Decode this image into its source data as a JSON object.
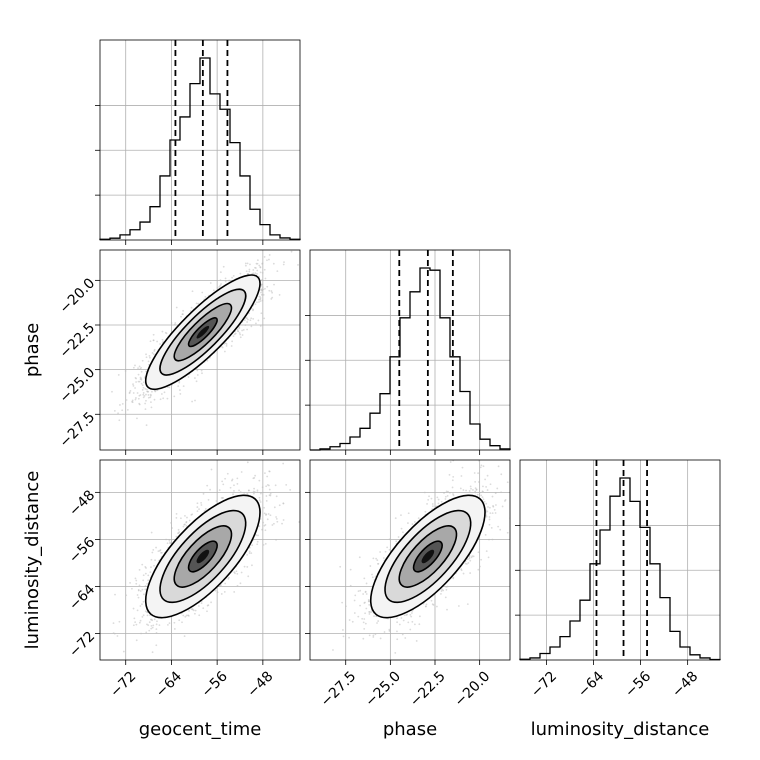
{
  "chart_data": {
    "type": "corner",
    "parameters": [
      "geocent_time",
      "phase",
      "luminosity_distance"
    ],
    "axis_labels": {
      "geocent_time": "geocent_time",
      "phase": "phase",
      "luminosity_distance": "luminosity_distance"
    },
    "ranges": {
      "geocent_time": [
        -76.5,
        -41.5
      ],
      "phase": [
        -29.5,
        -18.3
      ],
      "luminosity_distance": [
        -76.5,
        -42.5
      ]
    },
    "ticks": {
      "geocent_time": [
        -72,
        -64,
        -56,
        -48
      ],
      "phase": [
        -27.5,
        -25.0,
        -22.5,
        -20.0
      ],
      "luminosity_distance": [
        -72,
        -64,
        -56,
        -48
      ]
    },
    "tick_labels": {
      "geocent_time": [
        "−72",
        "−64",
        "−56",
        "−48"
      ],
      "phase": [
        "−27.5",
        "−25.0",
        "−22.5",
        "−20.0"
      ],
      "luminosity_distance": [
        "−72",
        "−64",
        "−56",
        "−48"
      ]
    },
    "histograms": {
      "geocent_time": {
        "edges": [
          -76.5,
          -74.75,
          -73.0,
          -71.25,
          -69.5,
          -67.75,
          -66.0,
          -64.25,
          -62.5,
          -60.75,
          -59.0,
          -57.25,
          -55.5,
          -53.75,
          -52.0,
          -50.25,
          -48.5,
          -46.75,
          -45.0,
          -43.25,
          -41.5
        ],
        "counts": [
          0.3,
          0.7,
          2,
          4,
          7,
          13,
          25,
          39,
          48,
          61,
          71,
          57,
          51,
          38,
          25,
          12,
          6,
          2,
          0.8,
          0.3
        ],
        "quantiles": [
          -63.3,
          -58.5,
          -54.2
        ]
      },
      "phase": {
        "edges": [
          -29.5,
          -28.94,
          -28.38,
          -27.82,
          -27.26,
          -26.7,
          -26.14,
          -25.58,
          -25.02,
          -24.46,
          -23.9,
          -23.34,
          -22.78,
          -22.22,
          -21.66,
          -21.1,
          -20.54,
          -19.98,
          -19.42,
          -18.86,
          -18.3
        ],
        "counts": [
          0,
          0.5,
          1.5,
          3,
          6,
          10,
          17,
          26,
          43,
          61,
          73,
          84,
          83,
          61,
          43,
          27,
          12,
          5,
          2,
          0.5
        ],
        "quantiles": [
          -24.5,
          -22.9,
          -21.5
        ]
      },
      "luminosity_distance": {
        "edges": [
          -76.5,
          -74.8,
          -73.1,
          -71.4,
          -69.7,
          -68.0,
          -66.3,
          -64.6,
          -62.9,
          -61.2,
          -59.5,
          -57.8,
          -56.1,
          -54.4,
          -52.7,
          -51.0,
          -49.3,
          -47.6,
          -45.9,
          -44.2,
          -42.5
        ],
        "counts": [
          0.3,
          0.8,
          2.5,
          5,
          9,
          15,
          23,
          37,
          50,
          63,
          70,
          61,
          51,
          37,
          24,
          11,
          5,
          2,
          0.8,
          0.2
        ],
        "quantiles": [
          -63.5,
          -58.9,
          -54.9
        ]
      }
    },
    "pairs": [
      {
        "x": "geocent_time",
        "y": "phase",
        "mean": [
          -58.5,
          -22.9
        ],
        "sd": [
          5.0,
          1.6
        ],
        "rho": 0.85
      },
      {
        "x": "geocent_time",
        "y": "luminosity_distance",
        "mean": [
          -58.5,
          -58.9
        ],
        "sd": [
          5.0,
          5.2
        ],
        "rho": 0.72
      },
      {
        "x": "phase",
        "y": "luminosity_distance",
        "mean": [
          -22.9,
          -58.9
        ],
        "sd": [
          1.6,
          5.2
        ],
        "rho": 0.72
      }
    ]
  }
}
